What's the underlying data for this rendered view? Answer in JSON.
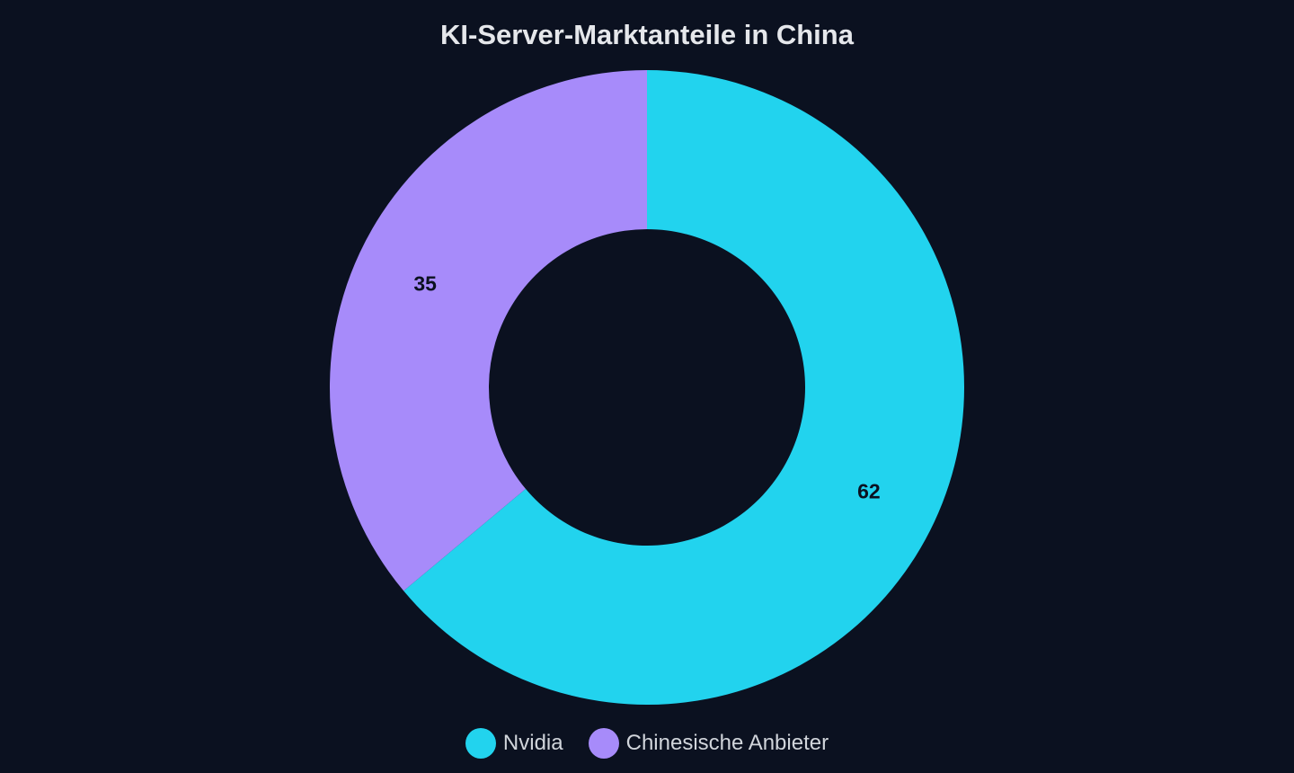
{
  "chart_data": {
    "type": "pie",
    "title": "KI-Server-Marktanteile in China",
    "categories": [
      "Nvidia",
      "Chinesische Anbieter"
    ],
    "values": [
      62,
      35
    ],
    "colors": [
      "#22d3ee",
      "#a78bfa"
    ],
    "donut": true,
    "legend": "bottom-center"
  },
  "theme": {
    "background": "#0b1120"
  }
}
